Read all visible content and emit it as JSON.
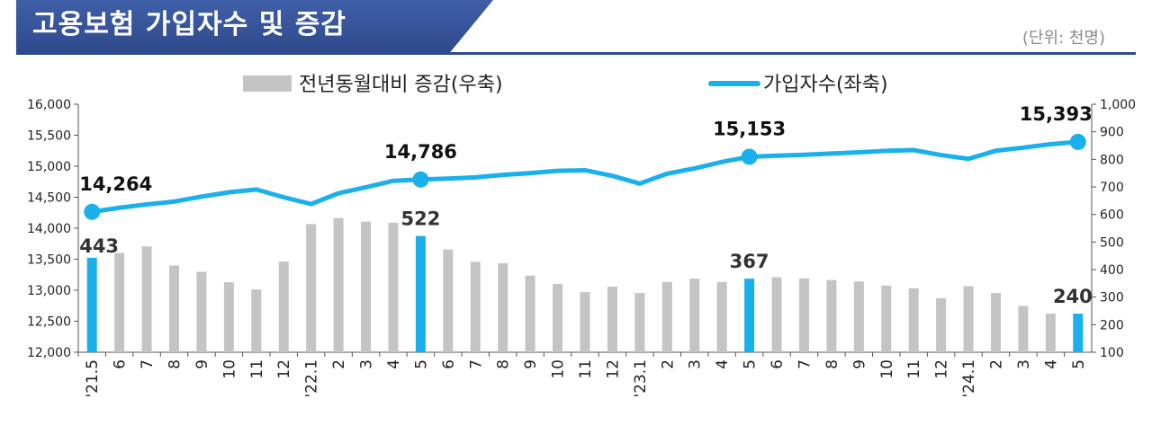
{
  "header": {
    "title": "고용보험 가입자수 및 증감",
    "unit": "(단위: 천명)"
  },
  "colors": {
    "title_bg": "#2f4a8c",
    "line": "#19b0eb",
    "bar_gray": "#c4c4c4",
    "bar_highlight": "#19b0eb"
  },
  "chart_data": {
    "type": "bar",
    "categories": [
      "'21.5",
      "6",
      "7",
      "8",
      "9",
      "10",
      "11",
      "12",
      "'22.1",
      "2",
      "3",
      "4",
      "5",
      "6",
      "7",
      "8",
      "9",
      "10",
      "11",
      "12",
      "'23.1",
      "2",
      "3",
      "4",
      "5",
      "6",
      "7",
      "8",
      "9",
      "10",
      "11",
      "12",
      "'24.1",
      "2",
      "3",
      "4",
      "5"
    ],
    "series": [
      {
        "name": "전년동월대비 증감(우축)",
        "type": "bar",
        "axis": "right",
        "values": [
          443,
          460,
          484,
          415,
          392,
          354,
          328,
          429,
          565,
          587,
          574,
          570,
          522,
          473,
          428,
          423,
          378,
          348,
          318,
          338,
          315,
          355,
          367,
          355,
          367,
          372,
          368,
          362,
          357,
          342,
          332,
          296,
          340,
          315,
          268,
          240,
          240
        ]
      },
      {
        "name": "가입자수(좌축)",
        "type": "line",
        "axis": "left",
        "values": [
          14264,
          14330,
          14385,
          14430,
          14510,
          14580,
          14625,
          14500,
          14390,
          14565,
          14660,
          14765,
          14786,
          14800,
          14820,
          14860,
          14890,
          14925,
          14935,
          14845,
          14720,
          14880,
          14965,
          15070,
          15153,
          15170,
          15185,
          15205,
          15225,
          15248,
          15260,
          15180,
          15120,
          15250,
          15300,
          15355,
          15393
        ]
      }
    ],
    "highlight_indices": [
      0,
      12,
      24,
      36
    ],
    "line_labels": [
      {
        "index": 0,
        "text": "14,264"
      },
      {
        "index": 12,
        "text": "14,786"
      },
      {
        "index": 24,
        "text": "15,153"
      },
      {
        "index": 36,
        "text": "15,393"
      }
    ],
    "bar_labels": [
      {
        "index": 0,
        "text": "443"
      },
      {
        "index": 12,
        "text": "522"
      },
      {
        "index": 24,
        "text": "367"
      },
      {
        "index": 36,
        "text": "240"
      }
    ],
    "left_axis": {
      "ylim": [
        12000,
        16000
      ],
      "ticks": [
        "12,000",
        "12,500",
        "13,000",
        "13,500",
        "14,000",
        "14,500",
        "15,000",
        "15,500",
        "16,000"
      ]
    },
    "right_axis": {
      "ylim": [
        100,
        1000
      ],
      "ticks": [
        "100",
        "200",
        "300",
        "400",
        "500",
        "600",
        "700",
        "800",
        "900",
        "1,000"
      ]
    },
    "legend": {
      "position": "top-center"
    },
    "grid": false
  }
}
